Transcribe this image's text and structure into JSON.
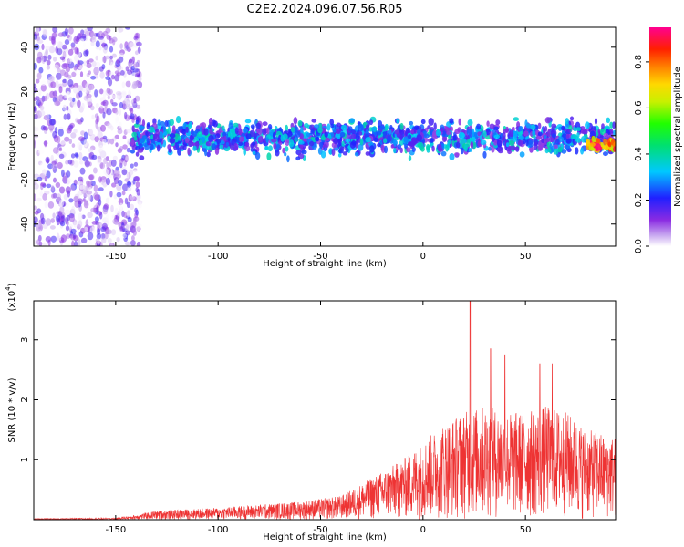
{
  "title": "C2E2.2024.096.07.56.R05",
  "chart_data": [
    {
      "type": "heatmap",
      "xlabel": "Height of straight line (km)",
      "ylabel": "Frequency (Hz)",
      "xlim": [
        -190,
        94
      ],
      "ylim": [
        -50,
        49
      ],
      "xticks": [
        -150,
        -100,
        -50,
        0,
        50
      ],
      "yticks": [
        -40,
        -20,
        0,
        20,
        40
      ],
      "colorbar": {
        "label": "Normalized spectral amplitude",
        "range": [
          0,
          0.95
        ],
        "ticks": [
          0.0,
          0.2,
          0.4,
          0.6,
          0.8
        ]
      },
      "regions": [
        {
          "x": [
            -190,
            -138
          ],
          "freq": [
            -50,
            49
          ],
          "amplitude": [
            0.0,
            0.2
          ]
        },
        {
          "x": [
            -142,
            94
          ],
          "freq": [
            -10,
            10
          ],
          "amplitude": [
            0.1,
            0.4
          ]
        },
        {
          "x": [
            80,
            94
          ],
          "freq": [
            -8,
            0
          ],
          "amplitude": [
            0.6,
            0.95
          ]
        }
      ]
    },
    {
      "type": "line",
      "xlabel": "Height of straight line (km)",
      "ylabel": "SNR (10 * v/v)",
      "yscale_label": "(x10",
      "yscale_exp": "4",
      "xlim": [
        -190,
        94
      ],
      "ylim": [
        0,
        3.65
      ],
      "xticks": [
        -150,
        -100,
        -50,
        0,
        50
      ],
      "yticks": [
        1,
        2,
        3
      ],
      "color": "#ee3333",
      "envelope": {
        "x": [
          -190,
          -150,
          -140,
          -130,
          -100,
          -60,
          -40,
          -30,
          -20,
          -10,
          0,
          10,
          20,
          30,
          40,
          50,
          60,
          70,
          80,
          94
        ],
        "y": [
          0.02,
          0.03,
          0.08,
          0.15,
          0.2,
          0.3,
          0.4,
          0.6,
          0.8,
          1.0,
          1.3,
          1.6,
          1.8,
          1.9,
          1.8,
          1.8,
          1.9,
          1.8,
          1.5,
          1.4
        ]
      },
      "peaks": [
        {
          "x": 23,
          "y": 3.65
        },
        {
          "x": 33,
          "y": 2.85
        },
        {
          "x": 40,
          "y": 2.75
        },
        {
          "x": 57,
          "y": 2.6
        },
        {
          "x": 63,
          "y": 2.6
        }
      ]
    }
  ]
}
